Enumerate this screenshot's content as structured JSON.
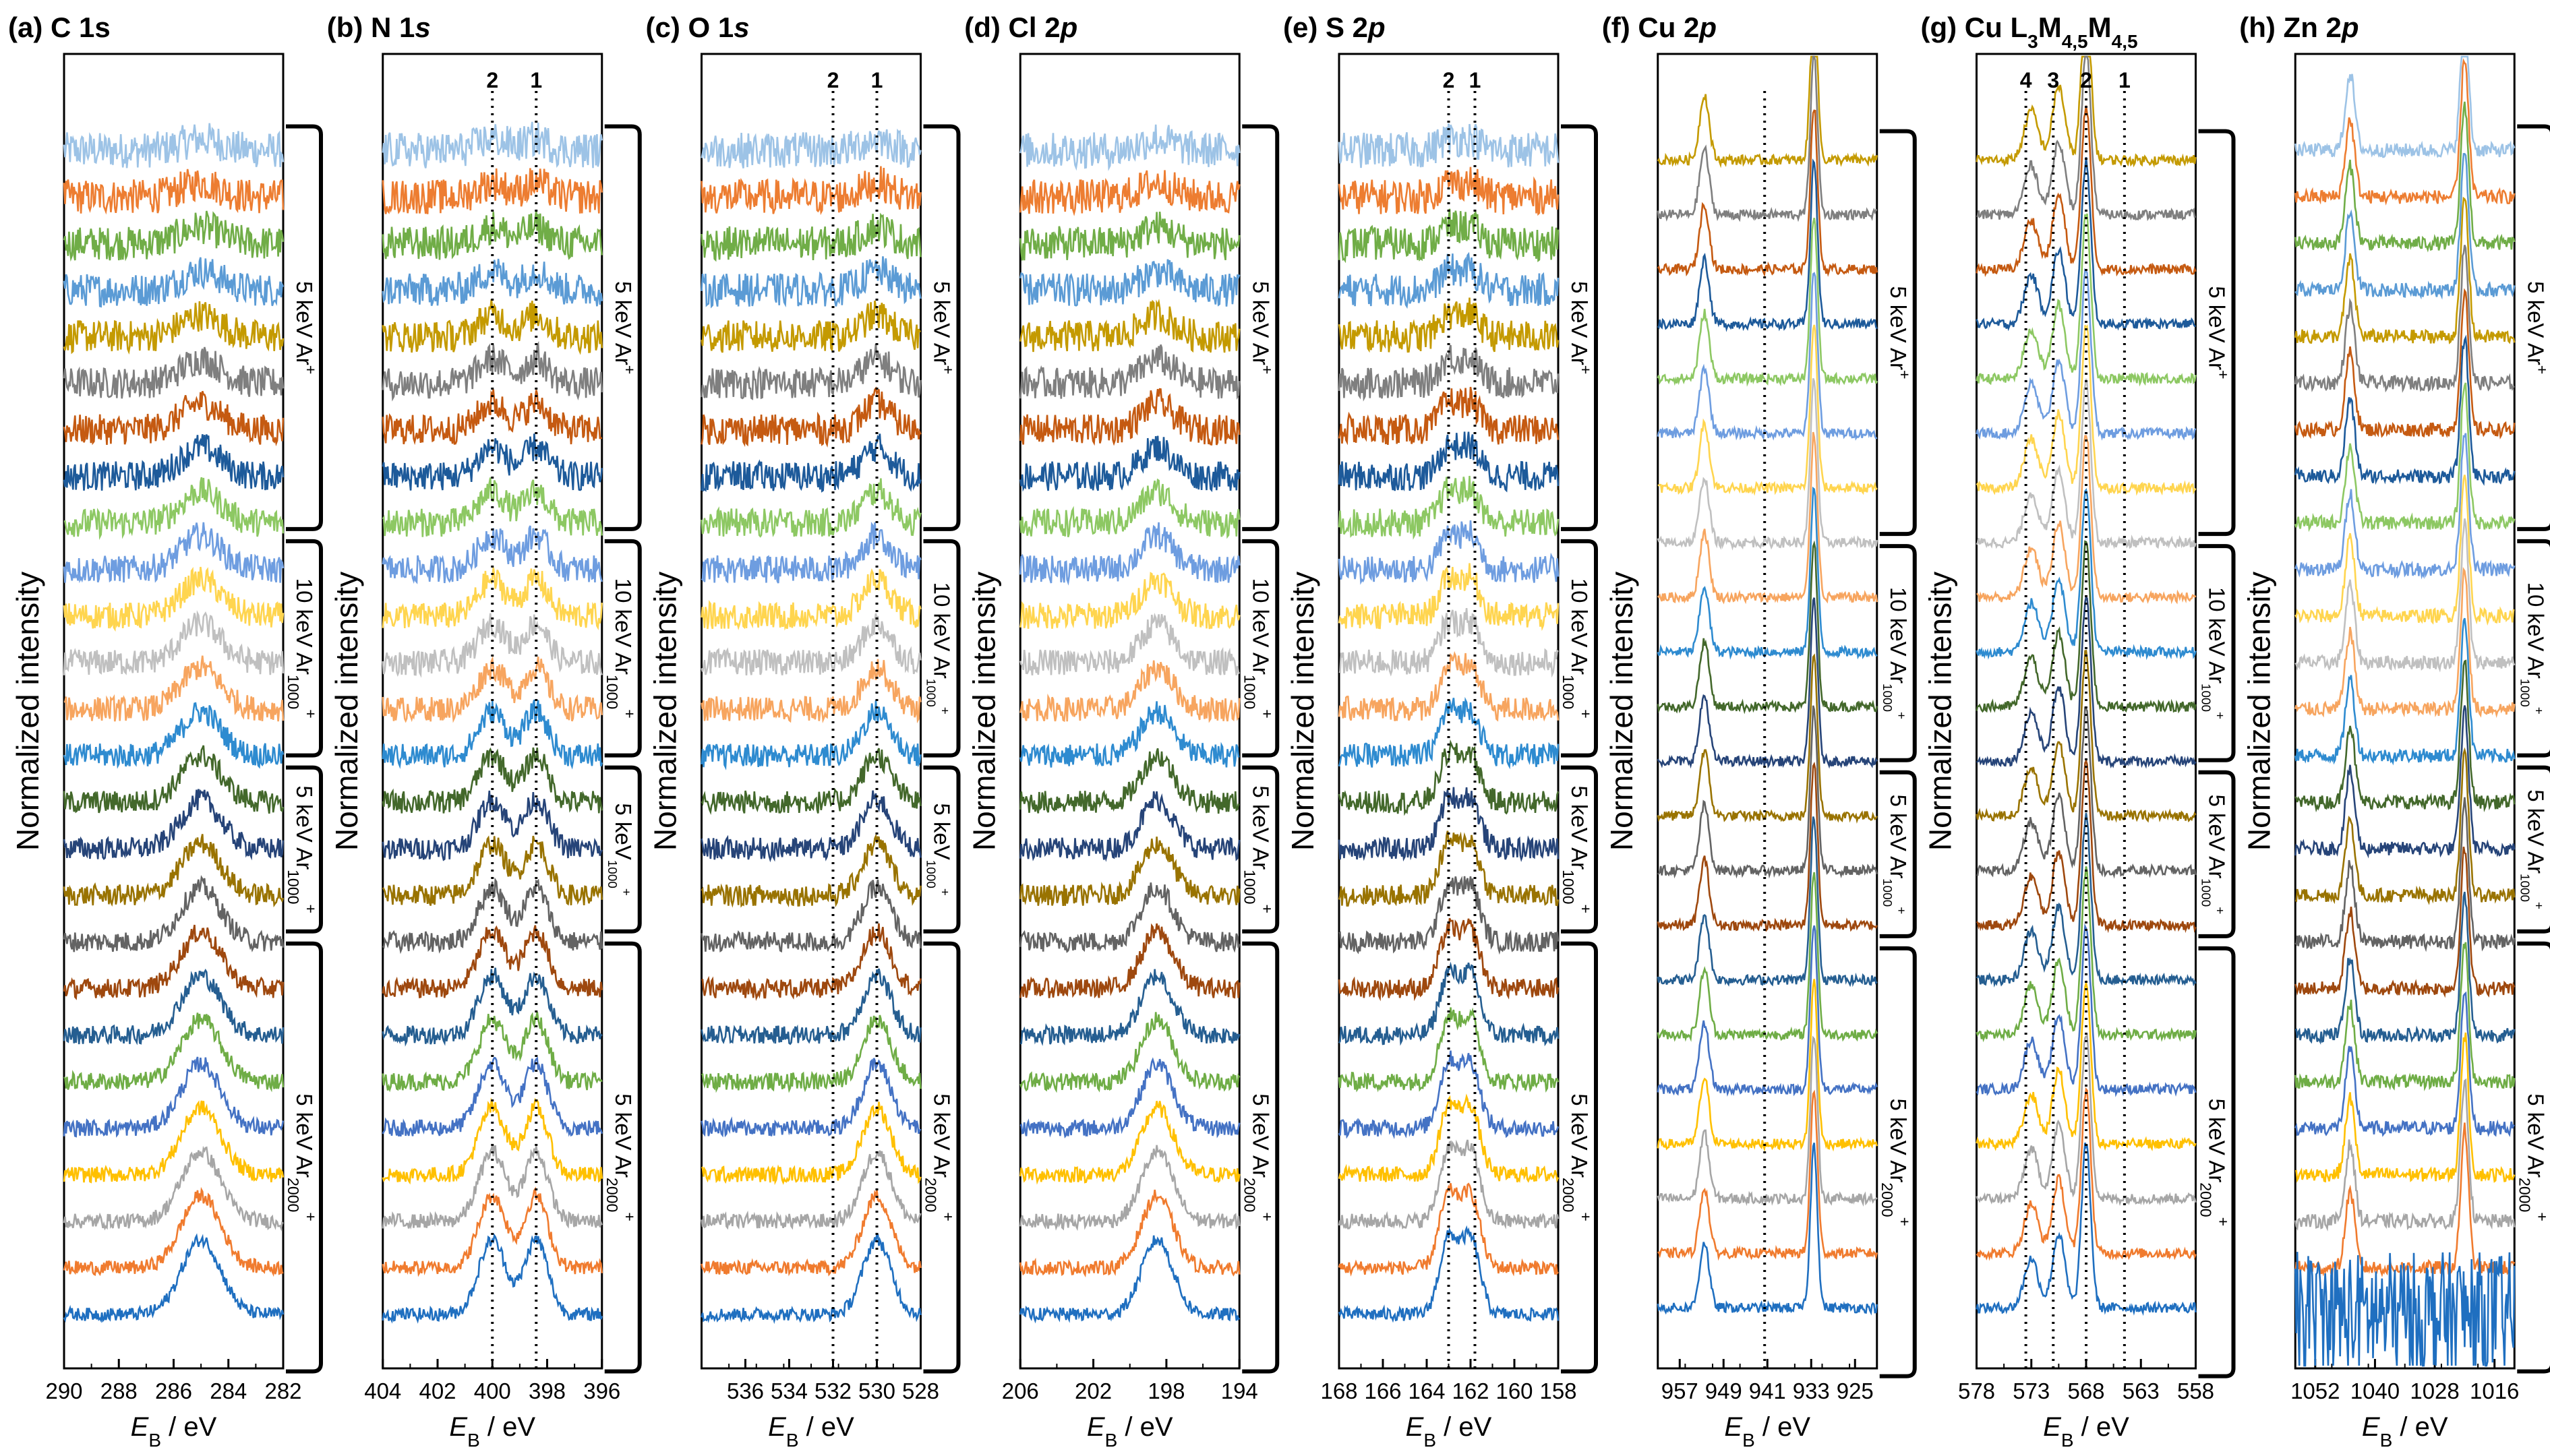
{
  "figure": {
    "ylabel": "Normalized intensity",
    "xlabel_italic": "E",
    "xlabel_sub": "B",
    "xlabel_unit": " / eV"
  },
  "colors": [
    "#1f6fc0",
    "#f07b2e",
    "#a6a6a6",
    "#ffc000",
    "#4472c4",
    "#6fad46",
    "#255e91",
    "#9e480e",
    "#636363",
    "#997300",
    "#264478",
    "#43682b",
    "#2e8bd0",
    "#f7a55f",
    "#c0c0c0",
    "#ffd54f",
    "#6e9de0",
    "#8dc863",
    "#1d5a9a",
    "#c55a11",
    "#7f7f7f",
    "#c49a00",
    "#5b9bd5",
    "#70ad47",
    "#ed7d31",
    "#9dc3e6"
  ],
  "chart_data": [
    {
      "type": "line",
      "label": "(a)",
      "element": "C 1s",
      "element_parts": [
        [
          "C 1s",
          ""
        ]
      ],
      "x_range": [
        290,
        282
      ],
      "ticks": [
        290,
        288,
        286,
        284,
        282
      ],
      "n_spectra": 26,
      "peaks": [
        {
          "pos": 285,
          "width": 1.0
        }
      ],
      "markers": [],
      "brackets": [
        {
          "line1": "5 keV Ar",
          "sup1": "+",
          "sub1": ""
        },
        {
          "line1": "10 keV Ar",
          "sup1": "+",
          "sub1": "1000"
        },
        {
          "line1": "5 keV Ar",
          "sup1": "+",
          "sub1": "1000"
        },
        {
          "line1": "5 keV Ar",
          "sup1": "+",
          "sub1": "2000"
        }
      ]
    },
    {
      "type": "line",
      "label": "(b)",
      "element": "N 1s",
      "element_parts": [
        [
          "N 1",
          ""
        ],
        [
          "s",
          "i"
        ]
      ],
      "x_range": [
        404,
        396
      ],
      "ticks": [
        404,
        402,
        400,
        398,
        396
      ],
      "n_spectra": 26,
      "peaks": [
        {
          "pos": 398.4,
          "width": 0.6
        },
        {
          "pos": 400,
          "width": 0.7
        }
      ],
      "markers": [
        {
          "pos": 400,
          "label": "2"
        },
        {
          "pos": 398.4,
          "label": "1"
        }
      ],
      "brackets": [
        {
          "line1": "5 keV Ar",
          "sup1": "+",
          "sub1": ""
        },
        {
          "line1": "10 keV Ar",
          "sup1": "+",
          "sub1": "1000"
        },
        {
          "line1": "5 keV",
          "sup1": "+",
          "sub1": "1000",
          "small": true
        },
        {
          "line1": "5 keV Ar",
          "sup1": "+",
          "sub1": "2000"
        }
      ]
    },
    {
      "type": "line",
      "label": "(c)",
      "element": "O 1s",
      "element_parts": [
        [
          "O 1",
          ""
        ],
        [
          "s",
          "i"
        ]
      ],
      "x_range": [
        538,
        528
      ],
      "ticks": [
        536,
        534,
        532,
        530,
        528
      ],
      "n_spectra": 26,
      "peaks": [
        {
          "pos": 530,
          "width": 0.9
        }
      ],
      "markers": [
        {
          "pos": 532,
          "label": "2"
        },
        {
          "pos": 530,
          "label": "1"
        }
      ],
      "brackets": [
        {
          "line1": "5 keV Ar",
          "sup1": "+",
          "sub1": ""
        },
        {
          "line1": "10 keV Ar",
          "sup1": "+",
          "sub1": "1000",
          "small": true
        },
        {
          "line1": "5 keV",
          "sup1": "+",
          "sub1": "1000",
          "small": true
        },
        {
          "line1": "5 keV Ar",
          "sup1": "+",
          "sub1": "2000"
        }
      ]
    },
    {
      "type": "line",
      "label": "(d)",
      "element": "Cl 2p",
      "element_parts": [
        [
          "Cl 2",
          ""
        ],
        [
          "p",
          "i"
        ]
      ],
      "x_range": [
        206,
        194
      ],
      "ticks": [
        206,
        202,
        198,
        194
      ],
      "n_spectra": 26,
      "peaks": [
        {
          "pos": 198.5,
          "width": 1.2
        }
      ],
      "markers": [],
      "brackets": [
        {
          "line1": "5 keV Ar",
          "sup1": "+",
          "sub1": ""
        },
        {
          "line1": "10 keV Ar",
          "sup1": "+",
          "sub1": "1000"
        },
        {
          "line1": "5 keV Ar",
          "sup1": "+",
          "sub1": "1000"
        },
        {
          "line1": "5 keV Ar",
          "sup1": "+",
          "sub1": "2000"
        }
      ]
    },
    {
      "type": "line",
      "label": "(e)",
      "element": "S 2p",
      "element_parts": [
        [
          "S 2",
          ""
        ],
        [
          "p",
          "i"
        ]
      ],
      "x_range": [
        168,
        158
      ],
      "ticks": [
        168,
        166,
        164,
        162,
        160,
        158
      ],
      "n_spectra": 26,
      "peaks": [
        {
          "pos": 162,
          "width": 0.6
        },
        {
          "pos": 163,
          "width": 0.6
        }
      ],
      "markers": [
        {
          "pos": 163,
          "label": "2"
        },
        {
          "pos": 161.8,
          "label": "1"
        }
      ],
      "brackets": [
        {
          "line1": "5 keV Ar",
          "sup1": "+",
          "sub1": ""
        },
        {
          "line1": "10 keV Ar",
          "sup1": "+",
          "sub1": "1000"
        },
        {
          "line1": "5 keV Ar",
          "sup1": "+",
          "sub1": "1000"
        },
        {
          "line1": "5 keV Ar",
          "sup1": "+",
          "sub1": "2000"
        }
      ]
    },
    {
      "type": "line",
      "label": "(f)",
      "element": "Cu 2p",
      "element_parts": [
        [
          "Cu 2",
          ""
        ],
        [
          "p",
          "i"
        ]
      ],
      "x_range": [
        961,
        921
      ],
      "ticks": [
        957,
        949,
        941,
        933,
        925
      ],
      "n_spectra": 22,
      "peaks": [
        {
          "pos": 952.5,
          "width": 1.2,
          "amp": 0.4
        },
        {
          "pos": 932.5,
          "width": 0.9
        }
      ],
      "markers": [
        {
          "pos": 941.5,
          "label": ""
        }
      ],
      "brackets": [
        {
          "line1": "5 keV Ar",
          "sup1": "+",
          "sub1": ""
        },
        {
          "line1": "10 keV Ar",
          "sup1": "+",
          "sub1": "1000",
          "small": true
        },
        {
          "line1": "5 keV Ar",
          "sup1": "+",
          "sub1": "1000",
          "small": true
        },
        {
          "line1": "5 keV Ar",
          "sup1": "+",
          "sub1": "2000"
        }
      ]
    },
    {
      "type": "line",
      "label": "(g)",
      "element": "Cu L3M4,5M4,5",
      "element_parts": [
        [
          "Cu L",
          ""
        ],
        [
          "3",
          "s"
        ],
        [
          "M",
          ""
        ],
        [
          "4,5",
          "s"
        ],
        [
          "M",
          ""
        ],
        [
          "4,5",
          "s"
        ]
      ],
      "x_range": [
        578,
        558
      ],
      "ticks": [
        578,
        573,
        568,
        563,
        558
      ],
      "n_spectra": 22,
      "peaks": [
        {
          "pos": 568,
          "width": 0.6
        },
        {
          "pos": 570.5,
          "width": 0.8,
          "amp": 0.45
        },
        {
          "pos": 573,
          "width": 0.9,
          "amp": 0.3
        }
      ],
      "markers": [
        {
          "pos": 573.5,
          "label": "4"
        },
        {
          "pos": 571,
          "label": "3"
        },
        {
          "pos": 568,
          "label": "2"
        },
        {
          "pos": 564.5,
          "label": "1"
        }
      ],
      "brackets": [
        {
          "line1": "5 keV Ar",
          "sup1": "+",
          "sub1": ""
        },
        {
          "line1": "10 keV Ar",
          "sup1": "+",
          "sub1": "1000",
          "small": true
        },
        {
          "line1": "5 keV Ar",
          "sup1": "+",
          "sub1": "1000",
          "small": true
        },
        {
          "line1": "5 keV Ar",
          "sup1": "+",
          "sub1": "2000"
        }
      ]
    },
    {
      "type": "line",
      "label": "(h)",
      "element": "Zn 2p",
      "element_parts": [
        [
          "Zn 2",
          ""
        ],
        [
          "p",
          "i"
        ]
      ],
      "x_range": [
        1056,
        1012
      ],
      "ticks": [
        1052,
        1040,
        1028,
        1016
      ],
      "n_spectra": 26,
      "peaks": [
        {
          "pos": 1045,
          "width": 1.3,
          "amp": 0.55
        },
        {
          "pos": 1022,
          "width": 1.1
        }
      ],
      "markers": [],
      "brackets": [
        {
          "line1": "5 keV Ar",
          "sup1": "+",
          "sub1": ""
        },
        {
          "line1": "10 keV Ar",
          "sup1": "+",
          "sub1": "1000",
          "small": true
        },
        {
          "line1": "5 keV Ar",
          "sup1": "+",
          "sub1": "1000",
          "small": true
        },
        {
          "line1": "5 keV Ar",
          "sup1": "+",
          "sub1": "2000"
        }
      ]
    }
  ]
}
